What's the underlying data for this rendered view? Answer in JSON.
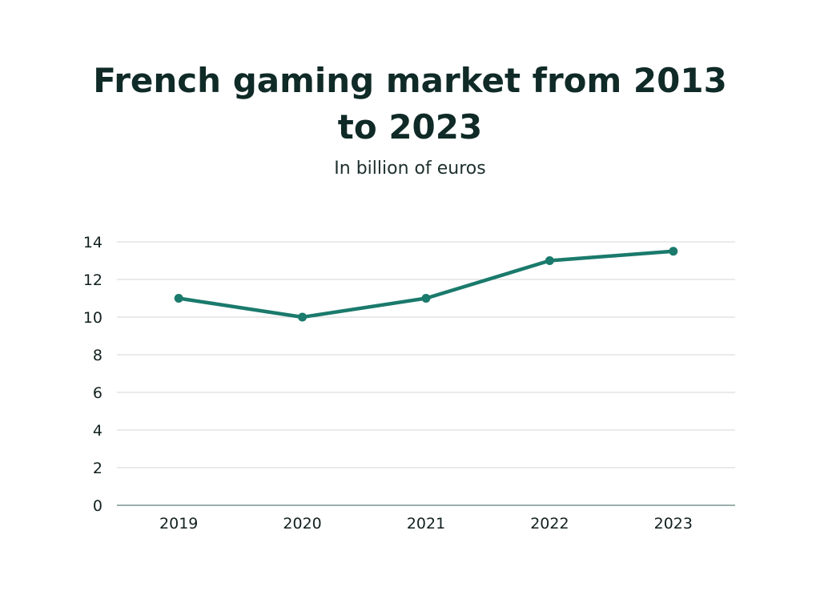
{
  "chart_data": {
    "type": "line",
    "title": "French gaming market from 2013 to 2023",
    "subtitle": "In billion of euros",
    "xlabel": "",
    "ylabel": "",
    "categories": [
      "2019",
      "2020",
      "2021",
      "2022",
      "2023"
    ],
    "series": [
      {
        "values": [
          11,
          10,
          11,
          13,
          13.5
        ]
      }
    ],
    "ylim": [
      0,
      14
    ],
    "yticks": [
      0,
      2,
      4,
      6,
      8,
      10,
      12,
      14
    ],
    "ytick_labels": [
      "0",
      "2",
      "4",
      "6",
      "8",
      "10",
      "12",
      "14"
    ],
    "grid": true,
    "legend": "none",
    "colors": {
      "line": "#1a7a6c",
      "grid": "#d4d4d4",
      "axis": "#5e7f7c"
    }
  }
}
